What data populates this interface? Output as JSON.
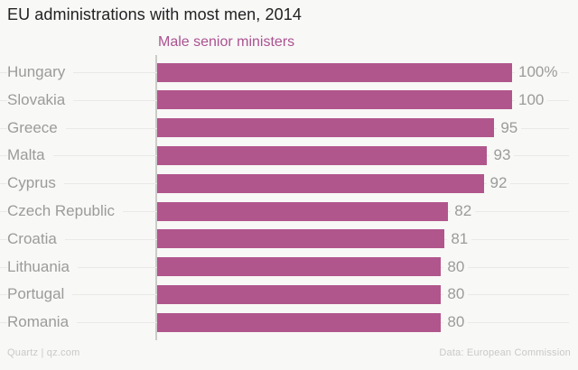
{
  "title": "EU administrations with most men, 2014",
  "subtitle": "Male senior ministers",
  "footer": {
    "source": "Quartz | qz.com",
    "credit": "Data: European Commission"
  },
  "colors": {
    "bar": "#b1568c",
    "subtitle_text": "#ab5290",
    "background": "#f8f8f7",
    "axis_label_text": "#9b9b99",
    "title_text": "#222222",
    "gridline": "#e9e9e6",
    "axis_line": "#cbcbc9",
    "footer_text": "#c9c9c7"
  },
  "chart_data": {
    "type": "bar",
    "orientation": "horizontal",
    "title": "EU administrations with most men, 2014",
    "subtitle": "Male senior ministers",
    "categories": [
      "Hungary",
      "Slovakia",
      "Greece",
      "Malta",
      "Cyprus",
      "Czech Republic",
      "Croatia",
      "Lithuania",
      "Portugal",
      "Romania"
    ],
    "values": [
      100,
      100,
      95,
      93,
      92,
      82,
      81,
      80,
      80,
      80
    ],
    "value_labels": [
      "100%",
      "100",
      "95",
      "93",
      "92",
      "82",
      "81",
      "80",
      "80",
      "80"
    ],
    "unit": "%",
    "xlim": [
      0,
      100
    ],
    "grid": "horizontal row lines",
    "legend": "none",
    "value_labels_position": "end of bar"
  }
}
